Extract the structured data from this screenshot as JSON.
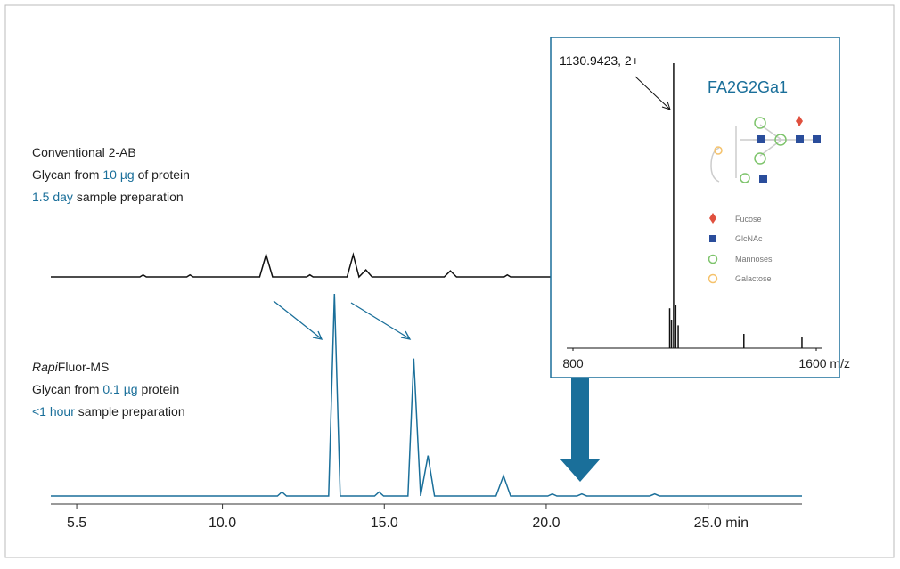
{
  "chart_data": [
    {
      "type": "line",
      "xlim": [
        4.7,
        27.9
      ],
      "xticks": [
        5.5,
        {
          "value": 10,
          "label": "10.0"
        },
        {
          "value": 15,
          "label": "15.0"
        },
        {
          "value": 20,
          "label": "20.0"
        },
        {
          "value": 25,
          "label": "25.0 min"
        }
      ],
      "ylim": [
        0,
        100
      ],
      "series": [
        {
          "color": "#111111",
          "x": [
            4.7,
            7.45,
            7.55,
            7.65,
            8.9,
            9.0,
            9.1,
            11.15,
            11.35,
            11.55,
            12.6,
            12.7,
            12.8,
            13.85,
            14.04,
            14.22,
            14.43,
            14.62,
            16.85,
            17.04,
            17.23,
            18.7,
            18.8,
            18.9,
            21.0
          ],
          "values": [
            0,
            0,
            1,
            0,
            0,
            1,
            0,
            0,
            11,
            0,
            0,
            1,
            0,
            0,
            11,
            0,
            3.5,
            0,
            0,
            3,
            0,
            0,
            1,
            0,
            0
          ]
        },
        {
          "color": "#1a6f9a",
          "x": [
            4.7,
            11.7,
            11.84,
            11.98,
            13.28,
            13.46,
            13.64,
            14.7,
            14.84,
            14.98,
            15.73,
            15.91,
            16.12,
            16.35,
            16.55,
            18.45,
            18.68,
            18.9,
            20.05,
            20.19,
            20.33,
            20.95,
            21.1,
            21.25,
            23.2,
            23.35,
            23.5,
            27.9
          ],
          "values": [
            0,
            0,
            2,
            0,
            0,
            100,
            0,
            0,
            2,
            0,
            0,
            68,
            0,
            20,
            0,
            0,
            10,
            0,
            0,
            1,
            0,
            0,
            1,
            0,
            0,
            1,
            0,
            0
          ]
        }
      ]
    },
    {
      "type": "spectrum",
      "xlim": [
        779.5,
        1617.6
      ],
      "xticks": [
        800,
        {
          "value": 1600,
          "label": "1600 m/z"
        }
      ],
      "ylim": [
        0,
        100
      ],
      "color": "#111111",
      "x": [
        1118,
        1124,
        1130.9423,
        1138,
        1146,
        1362,
        1553
      ],
      "values": [
        14,
        10,
        100,
        15,
        8,
        5,
        4
      ]
    }
  ],
  "upper_text": {
    "line1": "Conventional 2-AB",
    "line2": [
      "Glycan from ",
      "10 µg",
      " of protein"
    ],
    "line3": [
      "1.5 day",
      " sample preparation"
    ]
  },
  "lower_text": {
    "line1": [
      "Rapi",
      "Fluor-MS"
    ],
    "line2": [
      "Glycan from ",
      "0.1 µg",
      " protein"
    ],
    "line3": [
      "<1 hour",
      " sample preparation"
    ]
  },
  "inset": {
    "peak_label": "1130.9423, 2+",
    "glycan": "FA2G2Ga1",
    "legend": [
      "Fucose",
      "GlcNAc",
      "Mannoses",
      "Galactose"
    ]
  }
}
